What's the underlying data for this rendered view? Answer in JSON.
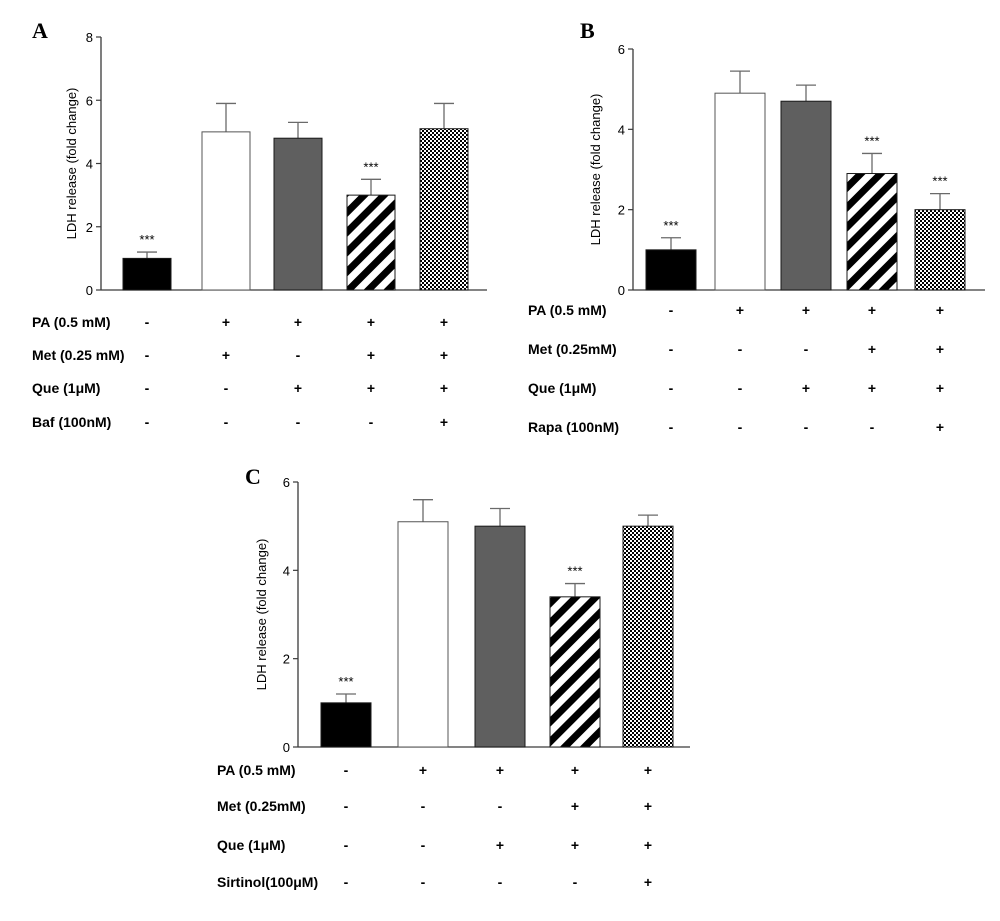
{
  "colors": {
    "axis": "#3a3a3a",
    "bar_black": "#000000",
    "bar_white": "#ffffff",
    "bar_gray": "#5f5f5f",
    "error": "#6a6a6a"
  },
  "chart_data": [
    {
      "id": "A",
      "type": "bar",
      "panel_label": "A",
      "ylabel": "LDH release (fold change)",
      "ylim": [
        0,
        8
      ],
      "yticks": [
        "0",
        "2",
        "4",
        "6",
        "8"
      ],
      "legend": "none",
      "grid": false,
      "bars": [
        {
          "value": 1.0,
          "error": 0.2,
          "pattern": "black",
          "annotation": "***"
        },
        {
          "value": 5.0,
          "error": 0.9,
          "pattern": "white",
          "annotation": ""
        },
        {
          "value": 4.8,
          "error": 0.5,
          "pattern": "gray",
          "annotation": ""
        },
        {
          "value": 3.0,
          "error": 0.5,
          "pattern": "stripe",
          "annotation": "***"
        },
        {
          "value": 5.1,
          "error": 0.8,
          "pattern": "check",
          "annotation": ""
        }
      ],
      "conditions": [
        {
          "label": "PA (0.5 mM)",
          "signs": [
            "-",
            "+",
            "+",
            "+",
            "+"
          ]
        },
        {
          "label": "Met (0.25 mM)",
          "signs": [
            "-",
            "+",
            "-",
            "+",
            "+"
          ]
        },
        {
          "label": "Que (1μM)",
          "signs": [
            "-",
            "-",
            "+",
            "+",
            "+"
          ]
        },
        {
          "label": "Baf (100nM)",
          "signs": [
            "-",
            "-",
            "-",
            "-",
            "+"
          ]
        }
      ]
    },
    {
      "id": "B",
      "type": "bar",
      "panel_label": "B",
      "ylabel": "LDH release (fold change)",
      "ylim": [
        0,
        6
      ],
      "yticks": [
        "0",
        "2",
        "4",
        "6"
      ],
      "legend": "none",
      "grid": false,
      "bars": [
        {
          "value": 1.0,
          "error": 0.3,
          "pattern": "black",
          "annotation": "***"
        },
        {
          "value": 4.9,
          "error": 0.55,
          "pattern": "white",
          "annotation": ""
        },
        {
          "value": 4.7,
          "error": 0.4,
          "pattern": "gray",
          "annotation": ""
        },
        {
          "value": 2.9,
          "error": 0.5,
          "pattern": "stripe",
          "annotation": "***"
        },
        {
          "value": 2.0,
          "error": 0.4,
          "pattern": "check",
          "annotation": "***"
        }
      ],
      "conditions": [
        {
          "label": "PA (0.5 mM)",
          "signs": [
            "-",
            "+",
            "+",
            "+",
            "+"
          ]
        },
        {
          "label": "Met (0.25mM)",
          "signs": [
            "-",
            "-",
            "-",
            "+",
            "+"
          ]
        },
        {
          "label": "Que (1μM)",
          "signs": [
            "-",
            "-",
            "+",
            "+",
            "+"
          ]
        },
        {
          "label": "Rapa (100nM)",
          "signs": [
            "-",
            "-",
            "-",
            "-",
            "+"
          ]
        }
      ]
    },
    {
      "id": "C",
      "type": "bar",
      "panel_label": "C",
      "ylabel": "LDH release (fold change)",
      "ylim": [
        0,
        6
      ],
      "yticks": [
        "0",
        "2",
        "4",
        "6"
      ],
      "legend": "none",
      "grid": false,
      "bars": [
        {
          "value": 1.0,
          "error": 0.2,
          "pattern": "black",
          "annotation": "***"
        },
        {
          "value": 5.1,
          "error": 0.5,
          "pattern": "white",
          "annotation": ""
        },
        {
          "value": 5.0,
          "error": 0.4,
          "pattern": "gray",
          "annotation": ""
        },
        {
          "value": 3.4,
          "error": 0.3,
          "pattern": "stripe",
          "annotation": "***"
        },
        {
          "value": 5.0,
          "error": 0.25,
          "pattern": "check",
          "annotation": ""
        }
      ],
      "conditions": [
        {
          "label": "PA (0.5 mM)",
          "signs": [
            "-",
            "+",
            "+",
            "+",
            "+"
          ]
        },
        {
          "label": "Met (0.25mM)",
          "signs": [
            "-",
            "-",
            "-",
            "+",
            "+"
          ]
        },
        {
          "label": "Que (1μM)",
          "signs": [
            "-",
            "-",
            "+",
            "+",
            "+"
          ]
        },
        {
          "label": "Sirtinol(100μM)",
          "signs": [
            "-",
            "-",
            "-",
            "-",
            "+"
          ]
        }
      ]
    }
  ]
}
